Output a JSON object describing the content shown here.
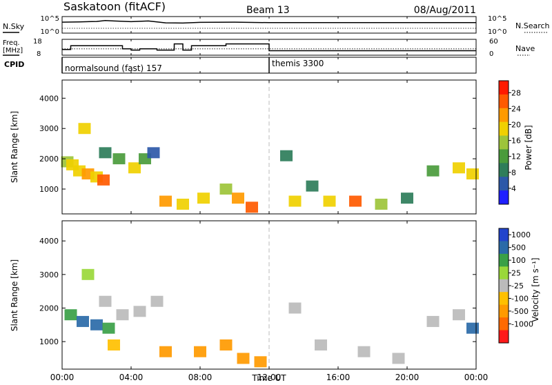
{
  "header": {
    "title_left": "Saskatoon (fitACF)",
    "title_center": "Beam 13",
    "title_right": "08/Aug/2011"
  },
  "noise_panel": {
    "left_label": "N.Sky",
    "left_ticks": [
      "10^5",
      "10^0"
    ],
    "right_label": "N.Search",
    "right_ticks": [
      "10^5",
      "10^0"
    ]
  },
  "freq_panel": {
    "left_label_1": "Freq.",
    "left_label_2": "[MHz]",
    "left_ticks": [
      "18",
      "8"
    ],
    "right_label": "Nave",
    "right_ticks": [
      "60",
      "0"
    ]
  },
  "cpid_panel": {
    "label": "CPID",
    "modes": [
      "normalsound (fast) 157",
      "themis 3300"
    ]
  },
  "x_axis": {
    "title": "Time UT",
    "ticks": [
      "00:00",
      "04:00",
      "08:00",
      "12:00",
      "16:00",
      "20:00",
      "00:00"
    ]
  },
  "power_panel": {
    "ylabel": "Slant Range [km]",
    "yticks": [
      "1000",
      "2000",
      "3000",
      "4000"
    ],
    "cbar_label": "Power [dB]",
    "cbar_ticks": [
      "28",
      "24",
      "20",
      "16",
      "12",
      "8",
      "4"
    ]
  },
  "velocity_panel": {
    "ylabel": "Slant Range [km]",
    "yticks": [
      "1000",
      "2000",
      "3000",
      "4000"
    ],
    "cbar_label": "Velocity [m s⁻¹]",
    "cbar_ticks": [
      "1000",
      "500",
      "100",
      "25",
      "-25",
      "-100",
      "-500",
      "-1000"
    ]
  },
  "colors": {
    "power_scale": [
      "#1f1fff",
      "#2c58a8",
      "#2e7d5a",
      "#4a9b3c",
      "#9dc43a",
      "#f0d000",
      "#ff9a00",
      "#ff5a00",
      "#ff1a00"
    ],
    "velocity_scale": [
      "#ff1a1a",
      "#ff6a00",
      "#ff9a00",
      "#ffc000",
      "#bbbbbb",
      "#9ad83a",
      "#3aa046",
      "#2a6aa8",
      "#2244cc"
    ]
  },
  "chart_data": [
    {
      "type": "line",
      "panel": "noise",
      "ylabel": "N.Sky",
      "scale": "log",
      "ylim": [
        1,
        100000
      ],
      "x_hours": [
        0,
        1,
        2,
        2.5,
        3,
        4,
        5,
        6,
        7,
        8,
        10,
        12,
        14,
        16,
        18,
        20,
        22,
        24
      ],
      "values_log10": [
        3.8,
        3.9,
        4.1,
        4.5,
        4.3,
        4.0,
        4.3,
        3.5,
        3.4,
        3.7,
        3.8,
        3.6,
        3.6,
        3.6,
        3.6,
        3.6,
        3.6,
        3.6
      ]
    },
    {
      "type": "line",
      "panel": "frequency",
      "ylabel": "Freq. [MHz]",
      "ylim": [
        8,
        18
      ],
      "x_hours": [
        0,
        0.5,
        0.5,
        3.5,
        3.5,
        4.0,
        4.0,
        4.5,
        4.5,
        5.5,
        5.5,
        6.5,
        6.5,
        7.0,
        7.0,
        7.5,
        7.5,
        9.5,
        9.5,
        12.0,
        12.0,
        24.0
      ],
      "values": [
        11.5,
        11.5,
        14.5,
        14.5,
        12,
        12,
        11,
        11,
        12,
        12,
        11,
        11,
        16,
        16,
        11,
        11,
        14.5,
        14.5,
        16,
        16,
        10.5,
        10.5
      ],
      "nave_level": 12
    },
    {
      "type": "heatmap",
      "panel": "power",
      "title": "",
      "xlabel": "Time UT",
      "ylabel": "Slant Range [km]",
      "xlim_hours": [
        0,
        24
      ],
      "ylim_km": [
        180,
        4600
      ],
      "cbar_range_db": [
        0,
        31
      ],
      "cells": [
        [
          0.3,
          1900,
          16
        ],
        [
          0.6,
          1800,
          20
        ],
        [
          1.0,
          1600,
          18
        ],
        [
          1.5,
          1500,
          22
        ],
        [
          2.0,
          1400,
          20
        ],
        [
          2.4,
          1300,
          26
        ],
        [
          1.3,
          3000,
          20
        ],
        [
          2.5,
          2200,
          8
        ],
        [
          3.3,
          2000,
          12
        ],
        [
          4.2,
          1700,
          18
        ],
        [
          4.8,
          2000,
          12
        ],
        [
          5.3,
          2200,
          6
        ],
        [
          6.0,
          600,
          24
        ],
        [
          7.0,
          500,
          20
        ],
        [
          8.2,
          700,
          18
        ],
        [
          9.5,
          1000,
          16
        ],
        [
          10.2,
          700,
          22
        ],
        [
          11.0,
          400,
          26
        ],
        [
          13.0,
          2100,
          8
        ],
        [
          13.5,
          600,
          20
        ],
        [
          14.5,
          1100,
          10
        ],
        [
          15.5,
          600,
          18
        ],
        [
          17.0,
          600,
          26
        ],
        [
          18.5,
          500,
          14
        ],
        [
          20.0,
          700,
          8
        ],
        [
          21.5,
          1600,
          12
        ],
        [
          23.0,
          1700,
          18
        ],
        [
          23.8,
          1500,
          20
        ]
      ]
    },
    {
      "type": "heatmap",
      "panel": "velocity",
      "title": "",
      "xlabel": "Time UT",
      "ylabel": "Slant Range [km]",
      "xlim_hours": [
        0,
        24
      ],
      "ylim_km": [
        180,
        4600
      ],
      "cbar_range_ms": [
        -1000,
        1000
      ],
      "cells": [
        [
          0.5,
          1800,
          500
        ],
        [
          1.2,
          1600,
          1000
        ],
        [
          2.0,
          1500,
          800
        ],
        [
          2.7,
          1400,
          300
        ],
        [
          1.5,
          3000,
          50
        ],
        [
          2.5,
          2200,
          10
        ],
        [
          3.5,
          1800,
          0
        ],
        [
          4.5,
          1900,
          0
        ],
        [
          5.5,
          2200,
          0
        ],
        [
          3.0,
          900,
          -60
        ],
        [
          6.0,
          700,
          -300
        ],
        [
          8.0,
          700,
          -300
        ],
        [
          9.5,
          900,
          -200
        ],
        [
          10.5,
          500,
          -400
        ],
        [
          11.5,
          400,
          -300
        ],
        [
          13.5,
          2000,
          0
        ],
        [
          15.0,
          900,
          0
        ],
        [
          17.5,
          700,
          0
        ],
        [
          19.5,
          500,
          0
        ],
        [
          21.5,
          1600,
          0
        ],
        [
          23.0,
          1800,
          0
        ],
        [
          23.8,
          1400,
          900
        ]
      ]
    }
  ]
}
